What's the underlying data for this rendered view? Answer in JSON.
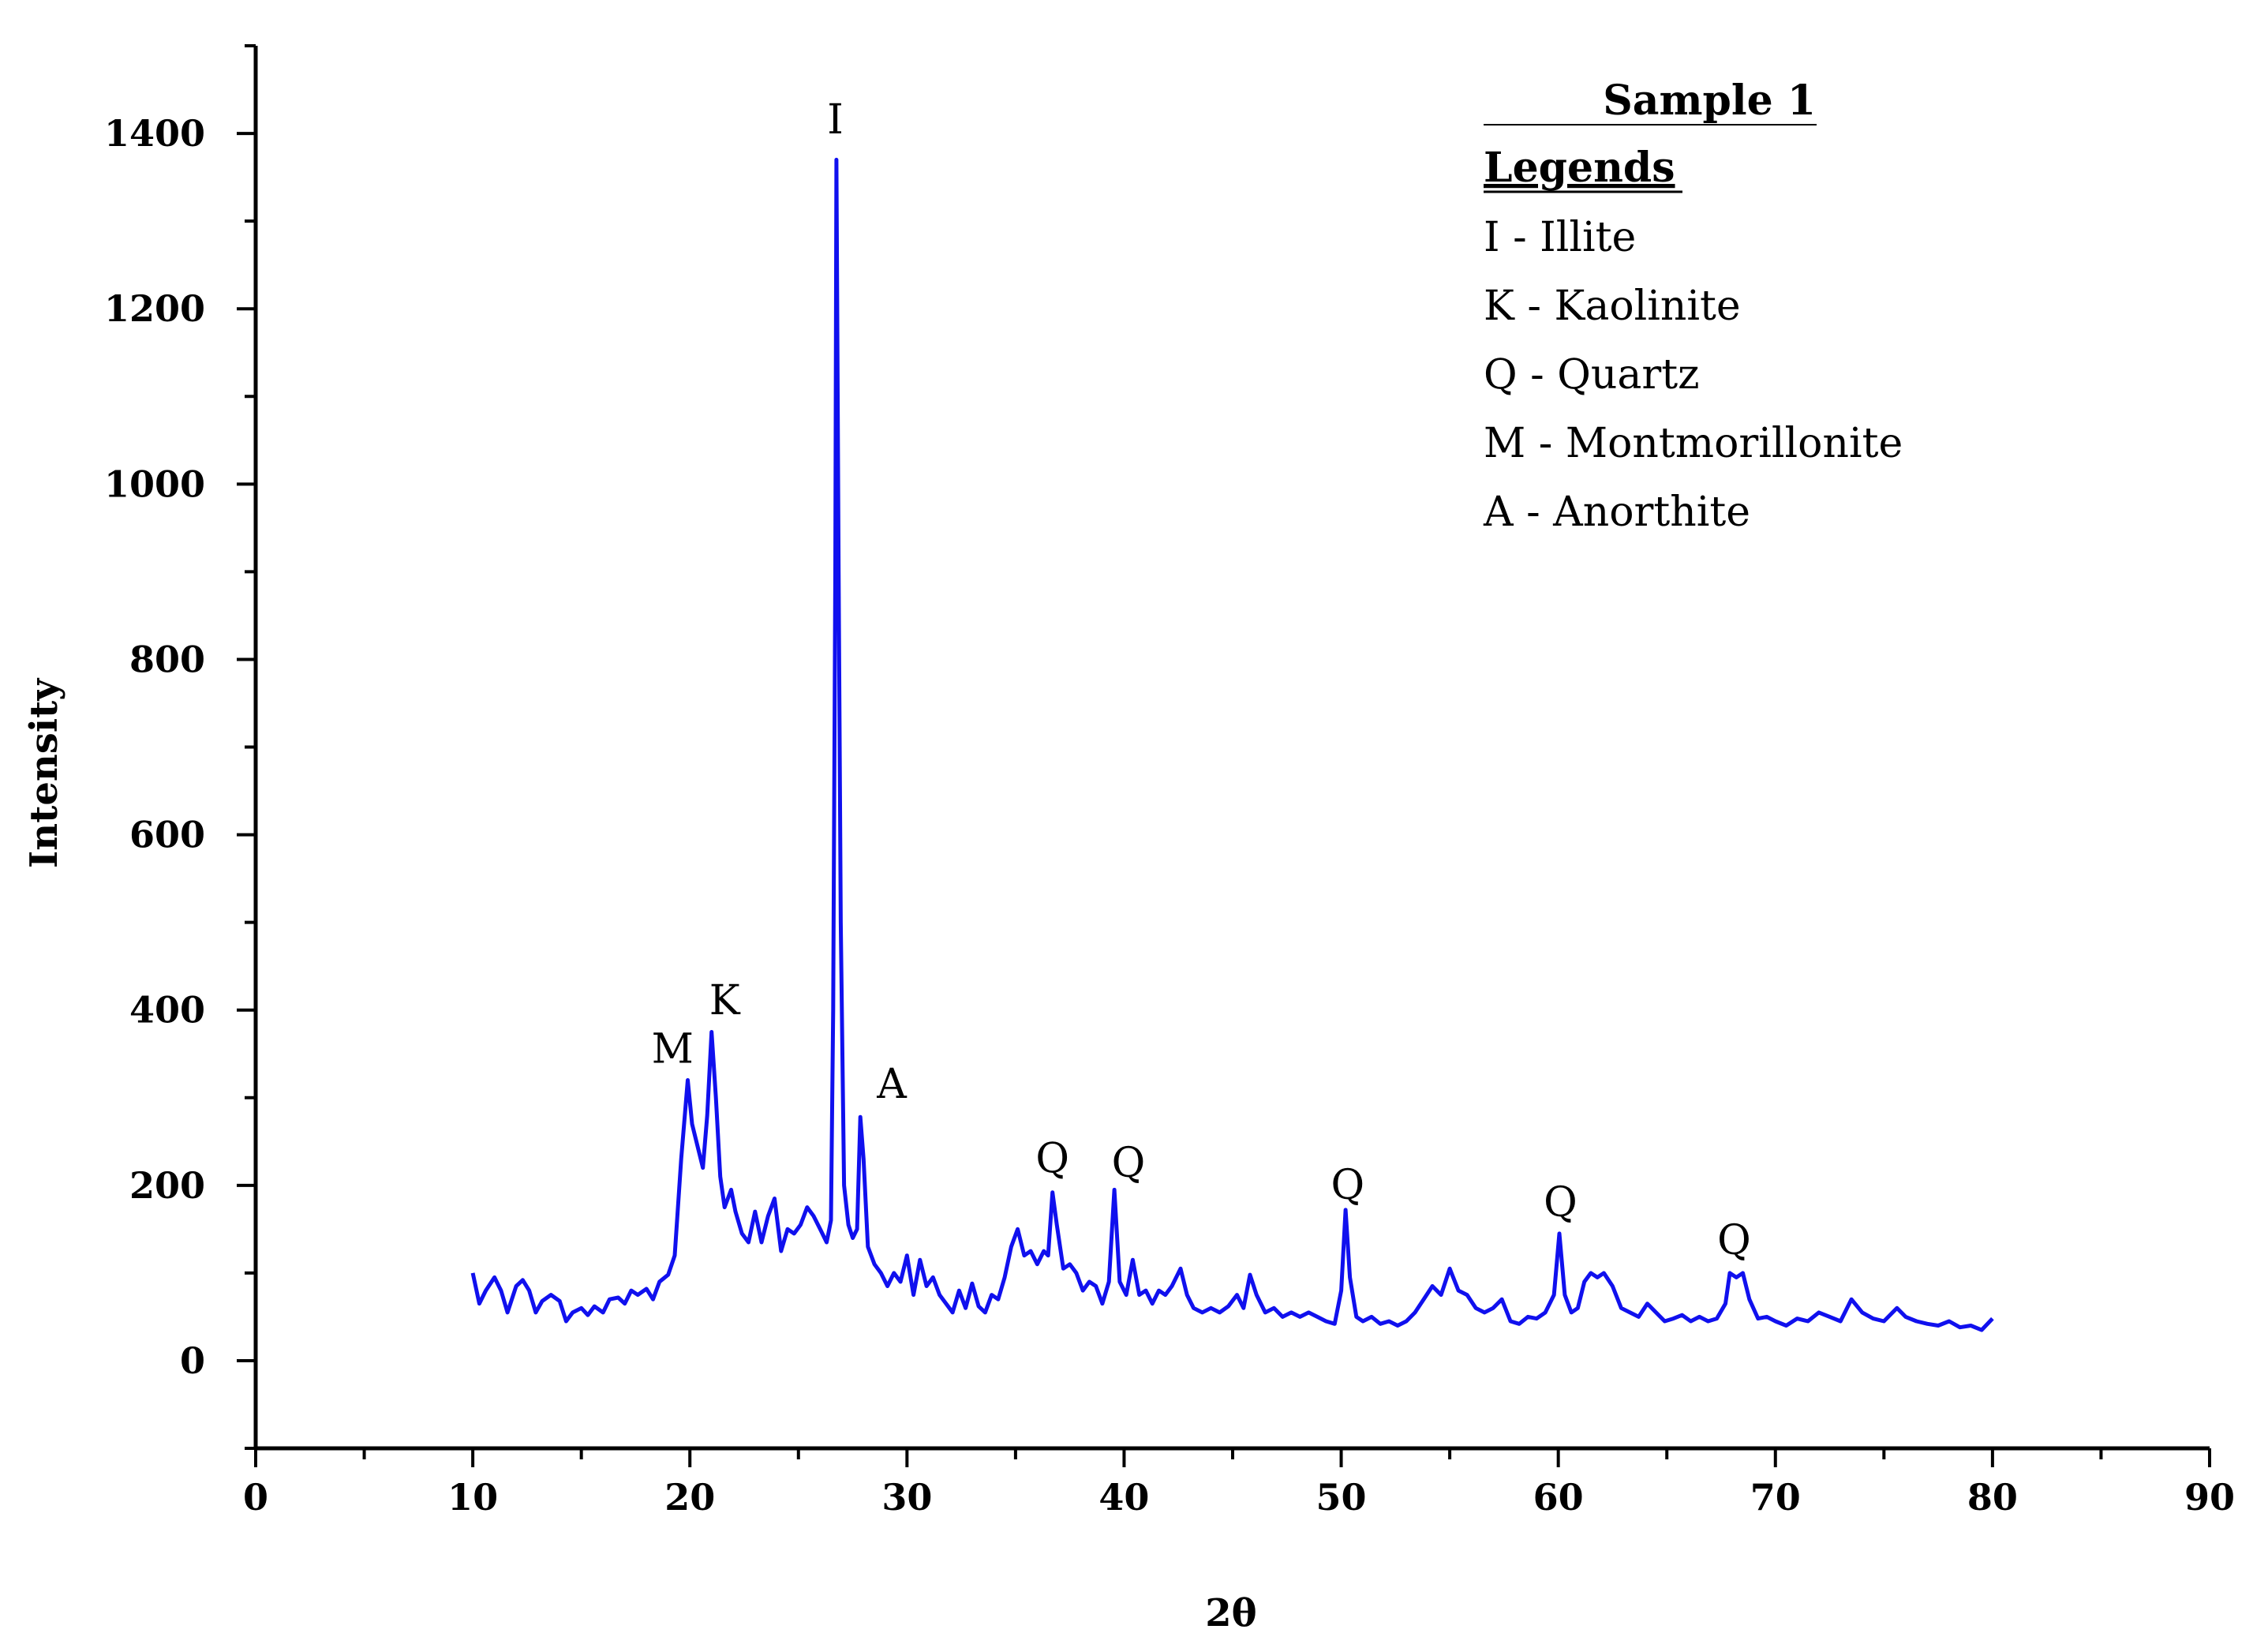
{
  "chart_data": {
    "type": "line",
    "xlabel": "2θ",
    "ylabel": "Intensity",
    "xlim": [
      0,
      90
    ],
    "ylim": [
      -100,
      1500
    ],
    "x_ticks": [
      0,
      10,
      20,
      30,
      40,
      50,
      60,
      70,
      80,
      90
    ],
    "x_tick_labels": [
      "0",
      "10",
      "20",
      "30",
      "40",
      "50",
      "60",
      "70",
      "80",
      "90"
    ],
    "y_ticks": [
      0,
      200,
      400,
      600,
      800,
      1000,
      1200,
      1400
    ],
    "y_tick_labels": [
      "0",
      "200",
      "400",
      "600",
      "800",
      "1000",
      "1200",
      "1400"
    ],
    "grid": false,
    "series_color": "#1010ee",
    "series": [
      {
        "points": [
          [
            10.0,
            100
          ],
          [
            10.3,
            65
          ],
          [
            10.6,
            80
          ],
          [
            11.0,
            95
          ],
          [
            11.3,
            80
          ],
          [
            11.6,
            55
          ],
          [
            12.0,
            85
          ],
          [
            12.3,
            92
          ],
          [
            12.6,
            80
          ],
          [
            12.9,
            55
          ],
          [
            13.2,
            68
          ],
          [
            13.6,
            75
          ],
          [
            14.0,
            68
          ],
          [
            14.3,
            45
          ],
          [
            14.6,
            55
          ],
          [
            15.0,
            60
          ],
          [
            15.3,
            52
          ],
          [
            15.6,
            62
          ],
          [
            16.0,
            55
          ],
          [
            16.3,
            70
          ],
          [
            16.7,
            72
          ],
          [
            17.0,
            65
          ],
          [
            17.3,
            80
          ],
          [
            17.6,
            75
          ],
          [
            18.0,
            82
          ],
          [
            18.3,
            70
          ],
          [
            18.6,
            90
          ],
          [
            19.0,
            98
          ],
          [
            19.3,
            120
          ],
          [
            19.6,
            230
          ],
          [
            19.9,
            320
          ],
          [
            20.1,
            270
          ],
          [
            20.4,
            240
          ],
          [
            20.6,
            220
          ],
          [
            20.8,
            280
          ],
          [
            21.0,
            375
          ],
          [
            21.2,
            300
          ],
          [
            21.4,
            210
          ],
          [
            21.6,
            175
          ],
          [
            21.9,
            195
          ],
          [
            22.1,
            170
          ],
          [
            22.4,
            145
          ],
          [
            22.7,
            135
          ],
          [
            23.0,
            170
          ],
          [
            23.3,
            135
          ],
          [
            23.6,
            165
          ],
          [
            23.9,
            185
          ],
          [
            24.2,
            125
          ],
          [
            24.5,
            150
          ],
          [
            24.8,
            145
          ],
          [
            25.1,
            155
          ],
          [
            25.4,
            175
          ],
          [
            25.7,
            165
          ],
          [
            26.0,
            150
          ],
          [
            26.3,
            135
          ],
          [
            26.5,
            160
          ],
          [
            26.6,
            400
          ],
          [
            26.7,
            900
          ],
          [
            26.75,
            1370
          ],
          [
            26.85,
            900
          ],
          [
            26.95,
            500
          ],
          [
            27.1,
            200
          ],
          [
            27.3,
            155
          ],
          [
            27.5,
            140
          ],
          [
            27.7,
            150
          ],
          [
            27.85,
            278
          ],
          [
            28.0,
            230
          ],
          [
            28.2,
            130
          ],
          [
            28.5,
            110
          ],
          [
            28.8,
            100
          ],
          [
            29.1,
            85
          ],
          [
            29.4,
            100
          ],
          [
            29.7,
            90
          ],
          [
            30.0,
            120
          ],
          [
            30.3,
            75
          ],
          [
            30.6,
            115
          ],
          [
            30.9,
            85
          ],
          [
            31.2,
            95
          ],
          [
            31.5,
            75
          ],
          [
            31.8,
            65
          ],
          [
            32.1,
            55
          ],
          [
            32.4,
            80
          ],
          [
            32.7,
            60
          ],
          [
            33.0,
            88
          ],
          [
            33.3,
            62
          ],
          [
            33.6,
            55
          ],
          [
            33.9,
            75
          ],
          [
            34.2,
            70
          ],
          [
            34.5,
            95
          ],
          [
            34.8,
            130
          ],
          [
            35.1,
            150
          ],
          [
            35.4,
            120
          ],
          [
            35.7,
            125
          ],
          [
            36.0,
            110
          ],
          [
            36.3,
            125
          ],
          [
            36.5,
            120
          ],
          [
            36.7,
            192
          ],
          [
            36.9,
            155
          ],
          [
            37.2,
            105
          ],
          [
            37.5,
            110
          ],
          [
            37.8,
            100
          ],
          [
            38.1,
            80
          ],
          [
            38.4,
            90
          ],
          [
            38.7,
            85
          ],
          [
            39.0,
            65
          ],
          [
            39.3,
            90
          ],
          [
            39.55,
            195
          ],
          [
            39.8,
            90
          ],
          [
            40.1,
            75
          ],
          [
            40.4,
            115
          ],
          [
            40.7,
            75
          ],
          [
            41.0,
            80
          ],
          [
            41.3,
            65
          ],
          [
            41.6,
            80
          ],
          [
            41.9,
            75
          ],
          [
            42.2,
            85
          ],
          [
            42.6,
            105
          ],
          [
            42.9,
            75
          ],
          [
            43.2,
            60
          ],
          [
            43.6,
            55
          ],
          [
            44.0,
            60
          ],
          [
            44.4,
            55
          ],
          [
            44.8,
            62
          ],
          [
            45.2,
            75
          ],
          [
            45.5,
            60
          ],
          [
            45.8,
            98
          ],
          [
            46.1,
            75
          ],
          [
            46.5,
            55
          ],
          [
            46.9,
            60
          ],
          [
            47.3,
            50
          ],
          [
            47.7,
            55
          ],
          [
            48.1,
            50
          ],
          [
            48.5,
            55
          ],
          [
            48.9,
            50
          ],
          [
            49.3,
            45
          ],
          [
            49.7,
            42
          ],
          [
            50.0,
            80
          ],
          [
            50.2,
            172
          ],
          [
            50.4,
            95
          ],
          [
            50.7,
            50
          ],
          [
            51.0,
            45
          ],
          [
            51.4,
            50
          ],
          [
            51.8,
            42
          ],
          [
            52.2,
            45
          ],
          [
            52.6,
            40
          ],
          [
            53.0,
            45
          ],
          [
            53.4,
            55
          ],
          [
            53.8,
            70
          ],
          [
            54.2,
            85
          ],
          [
            54.6,
            75
          ],
          [
            55.0,
            105
          ],
          [
            55.4,
            80
          ],
          [
            55.8,
            75
          ],
          [
            56.2,
            60
          ],
          [
            56.6,
            55
          ],
          [
            57.0,
            60
          ],
          [
            57.4,
            70
          ],
          [
            57.8,
            45
          ],
          [
            58.2,
            42
          ],
          [
            58.6,
            50
          ],
          [
            59.0,
            48
          ],
          [
            59.4,
            55
          ],
          [
            59.8,
            75
          ],
          [
            60.05,
            145
          ],
          [
            60.3,
            75
          ],
          [
            60.6,
            55
          ],
          [
            60.9,
            60
          ],
          [
            61.2,
            90
          ],
          [
            61.5,
            100
          ],
          [
            61.8,
            95
          ],
          [
            62.1,
            100
          ],
          [
            62.5,
            85
          ],
          [
            62.9,
            60
          ],
          [
            63.3,
            55
          ],
          [
            63.7,
            50
          ],
          [
            64.1,
            65
          ],
          [
            64.5,
            55
          ],
          [
            64.9,
            45
          ],
          [
            65.3,
            48
          ],
          [
            65.7,
            52
          ],
          [
            66.1,
            45
          ],
          [
            66.5,
            50
          ],
          [
            66.9,
            45
          ],
          [
            67.3,
            48
          ],
          [
            67.7,
            65
          ],
          [
            67.9,
            100
          ],
          [
            68.2,
            95
          ],
          [
            68.5,
            100
          ],
          [
            68.8,
            70
          ],
          [
            69.2,
            48
          ],
          [
            69.6,
            50
          ],
          [
            70.0,
            45
          ],
          [
            70.5,
            40
          ],
          [
            71.0,
            48
          ],
          [
            71.5,
            45
          ],
          [
            72.0,
            55
          ],
          [
            72.5,
            50
          ],
          [
            73.0,
            45
          ],
          [
            73.5,
            70
          ],
          [
            74.0,
            55
          ],
          [
            74.5,
            48
          ],
          [
            75.0,
            45
          ],
          [
            75.6,
            60
          ],
          [
            76.0,
            50
          ],
          [
            76.5,
            45
          ],
          [
            77.0,
            42
          ],
          [
            77.5,
            40
          ],
          [
            78.0,
            45
          ],
          [
            78.5,
            38
          ],
          [
            79.0,
            40
          ],
          [
            79.5,
            35
          ],
          [
            80.0,
            48
          ]
        ]
      }
    ],
    "annotations": [
      {
        "text": "I",
        "x": 26.7,
        "y": 1400
      },
      {
        "text": "M",
        "x": 19.2,
        "y": 340
      },
      {
        "text": "K",
        "x": 21.6,
        "y": 395
      },
      {
        "text": "A",
        "x": 29.3,
        "y": 300
      },
      {
        "text": "Q",
        "x": 36.7,
        "y": 215
      },
      {
        "text": "Q",
        "x": 40.2,
        "y": 210
      },
      {
        "text": "Q",
        "x": 50.3,
        "y": 185
      },
      {
        "text": "Q",
        "x": 60.1,
        "y": 165
      },
      {
        "text": "Q",
        "x": 68.1,
        "y": 122
      }
    ],
    "legend": {
      "placement": "top-right",
      "title": "Sample 1",
      "heading": "Legends",
      "entries": [
        "I - Illite",
        "K - Kaolinite",
        "Q - Quartz",
        "M - Montmorillonite",
        "A - Anorthite"
      ]
    }
  }
}
